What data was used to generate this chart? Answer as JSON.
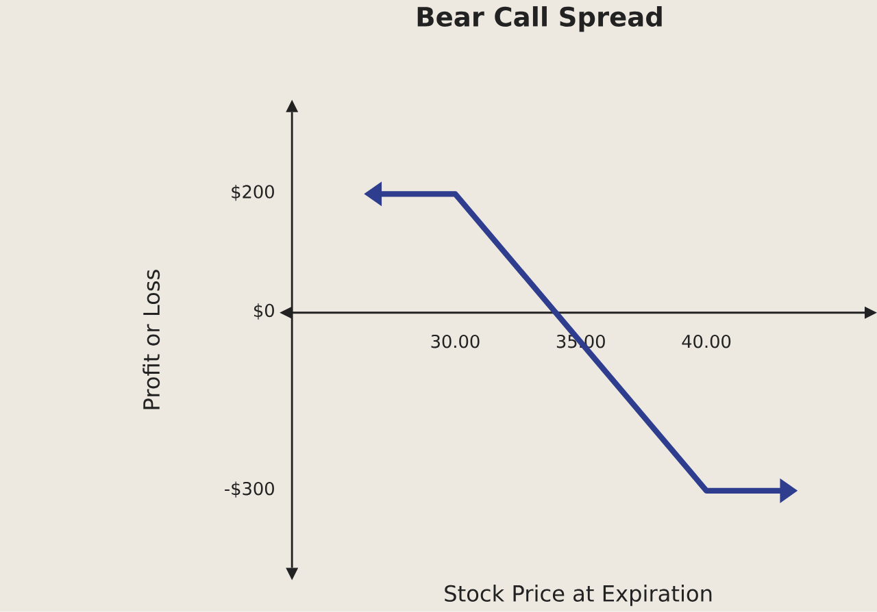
{
  "chart_data": {
    "type": "line",
    "title": "Bear Call Spread",
    "xlabel": "Stock Price at Expiration",
    "ylabel": "Profit or Loss",
    "x": [
      27,
      30,
      40,
      43
    ],
    "series": [
      {
        "color": "#2e3d8e",
        "values": [
          200,
          200,
          -300,
          -300
        ]
      }
    ],
    "xlim": [
      23.5,
      46.3
    ],
    "ylim": [
      -430,
      338
    ],
    "xticks": [
      {
        "value": 30,
        "label": "30.00"
      },
      {
        "value": 35,
        "label": "35.00"
      },
      {
        "value": 40,
        "label": "40.00"
      }
    ],
    "yticks": [
      {
        "value": 200,
        "label": "$200"
      },
      {
        "value": 0,
        "label": "$0"
      },
      {
        "value": -300,
        "label": "-$300"
      }
    ],
    "marker": "none",
    "line_style": "solid"
  }
}
